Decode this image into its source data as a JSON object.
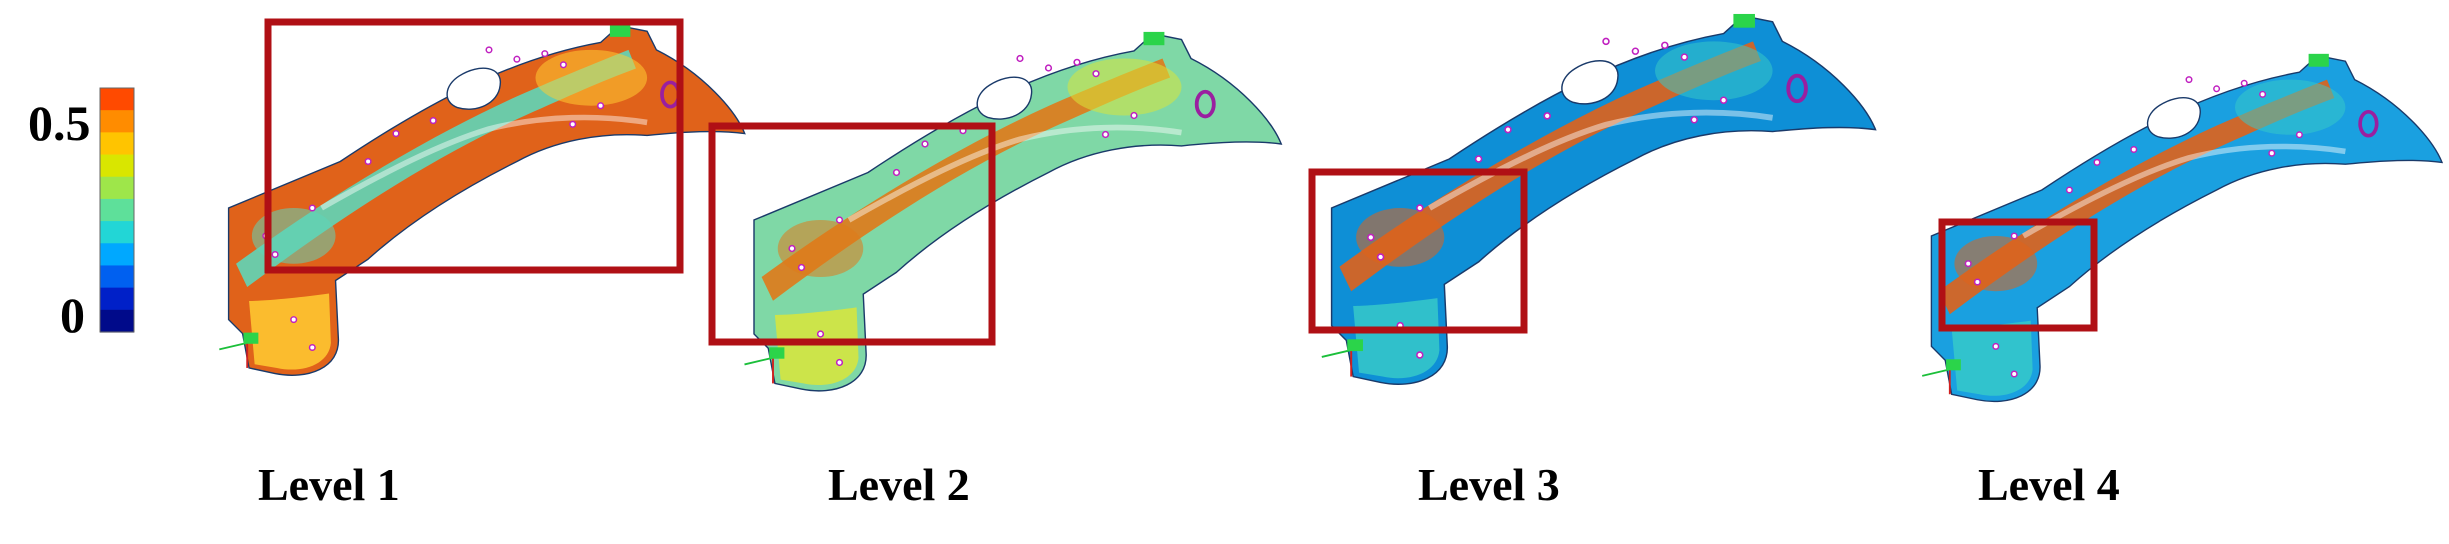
{
  "legend": {
    "max_label": "0.5",
    "min_label": "0",
    "colors": [
      "#ff4a00",
      "#ff8c00",
      "#ffc400",
      "#d9e600",
      "#9ee64a",
      "#5ee09a",
      "#22d6d6",
      "#00a8ff",
      "#0060f0",
      "#0020c8",
      "#000a8a"
    ]
  },
  "panels": [
    {
      "label": "Level 1",
      "dominant": "#e0621a",
      "secondary": "#5fd6b8",
      "accent": "#ffcc33"
    },
    {
      "label": "Level 2",
      "dominant": "#7fd8a6",
      "secondary": "#e07a1a",
      "accent": "#d9e63a"
    },
    {
      "label": "Level 3",
      "dominant": "#0e8fd6",
      "secondary": "#e0621a",
      "accent": "#36c9c9"
    },
    {
      "label": "Level 4",
      "dominant": "#1aa0e0",
      "secondary": "#e0621a",
      "accent": "#36c9c9"
    }
  ],
  "highlight_color": "#b01015"
}
